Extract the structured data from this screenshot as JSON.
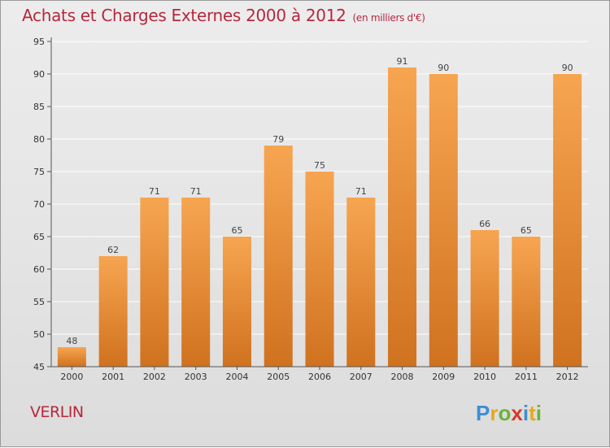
{
  "header": {
    "title": "Achats et Charges Externes 2000 à 2012",
    "subtitle": "(en milliers d'€)"
  },
  "footer": {
    "city": "VERLIN",
    "logo_text": "Proxiti"
  },
  "colors": {
    "title": "#b5283e",
    "bar_top": "#f7a551",
    "bar_bottom": "#d0721f",
    "axis": "#555555"
  },
  "chart_data": {
    "type": "bar",
    "title": "Achats et Charges Externes 2000 à 2012",
    "subtitle": "(en milliers d'€)",
    "xlabel": "",
    "ylabel": "",
    "categories": [
      "2000",
      "2001",
      "2002",
      "2003",
      "2004",
      "2005",
      "2006",
      "2007",
      "2008",
      "2009",
      "2010",
      "2011",
      "2012"
    ],
    "values": [
      48,
      62,
      71,
      71,
      65,
      79,
      75,
      71,
      91,
      90,
      66,
      65,
      90
    ],
    "ylim": [
      45,
      95
    ],
    "yticks": [
      45,
      50,
      55,
      60,
      65,
      70,
      75,
      80,
      85,
      90,
      95
    ],
    "grid": true,
    "data_labels": true
  }
}
